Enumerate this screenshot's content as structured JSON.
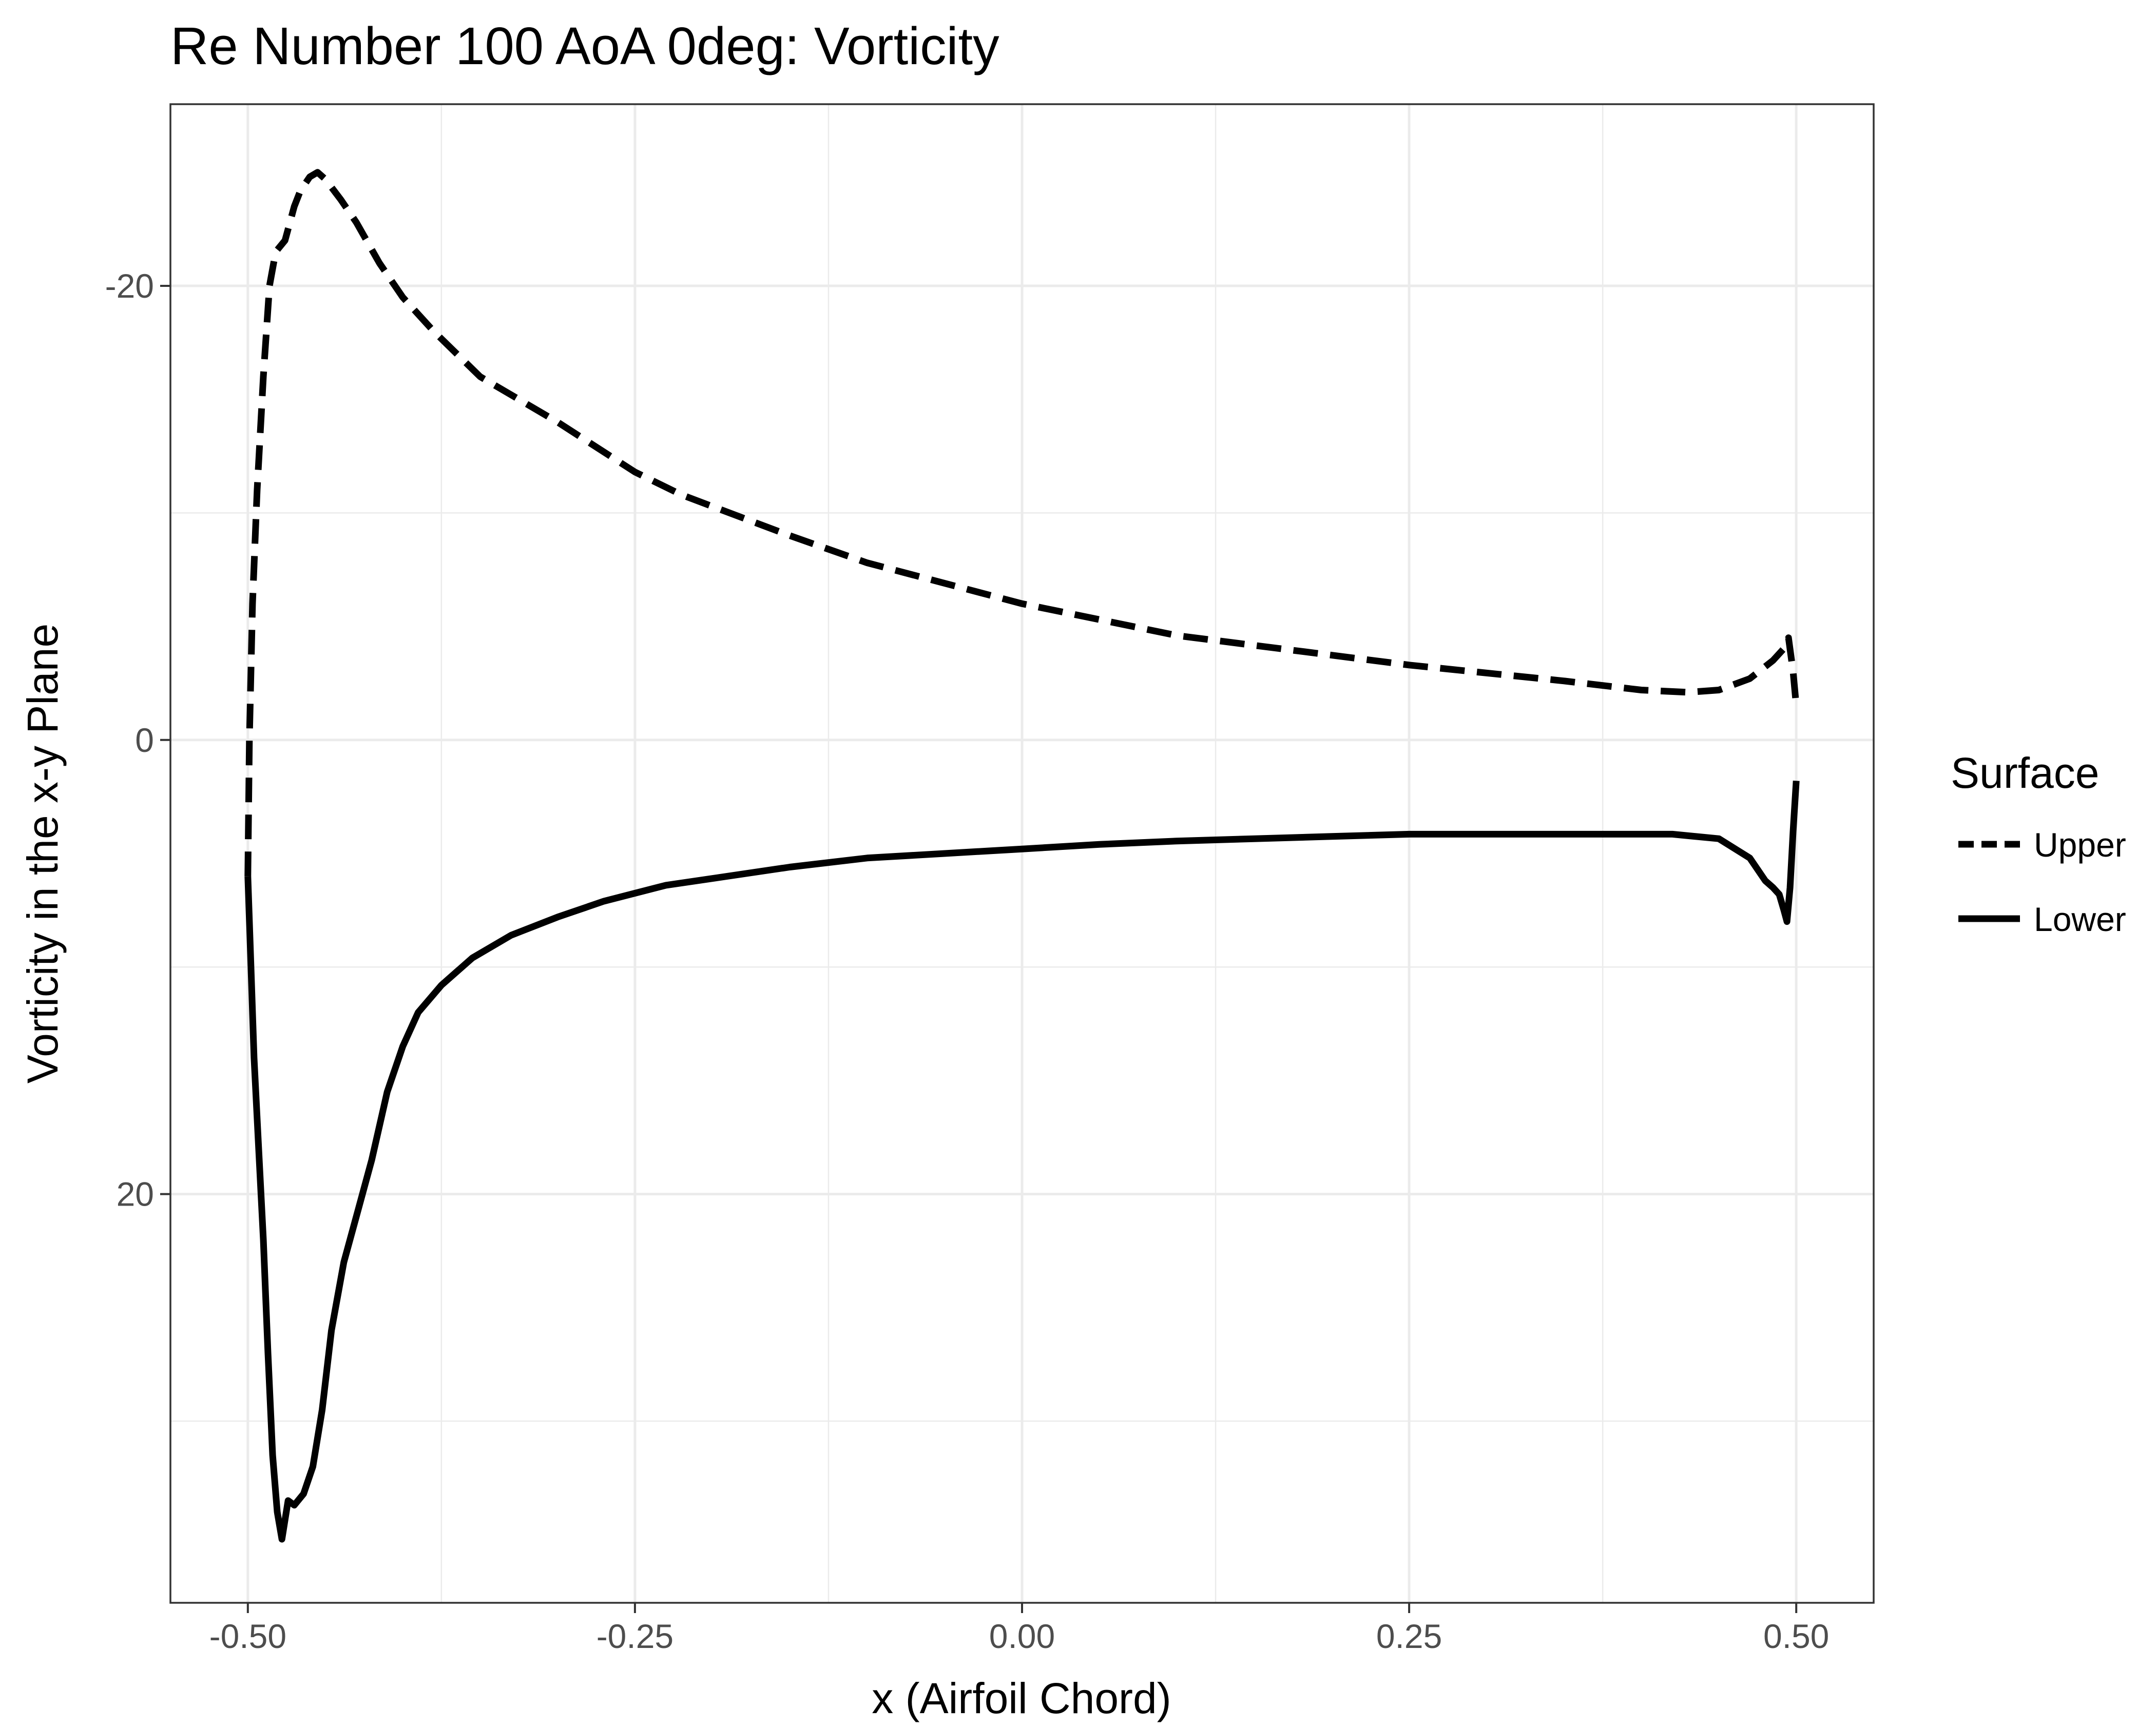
{
  "chart_data": {
    "type": "line",
    "title": "Re Number 100 AoA 0deg: Vorticity",
    "xlabel": "x (Airfoil Chord)",
    "ylabel": "Vorticity in the x-y Plane",
    "xlim": [
      -0.55,
      0.55
    ],
    "ylim": [
      -28,
      38
    ],
    "y_reversed": true,
    "grid": true,
    "x_ticks": [
      -0.5,
      -0.25,
      0.0,
      0.25,
      0.5
    ],
    "x_tick_labels": [
      "-0.50",
      "-0.25",
      "0.00",
      "0.25",
      "0.50"
    ],
    "y_ticks": [
      -20,
      0,
      20
    ],
    "y_tick_labels": [
      "-20",
      "0",
      "20"
    ],
    "legend": {
      "title": "Surface",
      "position": "right"
    },
    "series": [
      {
        "name": "Upper",
        "linetype": "dashed",
        "color": "#000000",
        "x": [
          -0.5,
          -0.499,
          -0.497,
          -0.494,
          -0.49,
          -0.486,
          -0.482,
          -0.476,
          -0.47,
          -0.466,
          -0.46,
          -0.455,
          -0.45,
          -0.44,
          -0.43,
          -0.415,
          -0.4,
          -0.38,
          -0.35,
          -0.3,
          -0.25,
          -0.22,
          -0.15,
          -0.1,
          0.0,
          0.1,
          0.25,
          0.35,
          0.4,
          0.43,
          0.45,
          0.47,
          0.485,
          0.493,
          0.495,
          0.498,
          0.5
        ],
        "y": [
          6,
          0,
          -6,
          -11,
          -16,
          -20,
          -21.5,
          -22,
          -23.5,
          -24.2,
          -24.8,
          -25,
          -24.7,
          -23.8,
          -22.8,
          -21,
          -19.5,
          -18,
          -16,
          -14,
          -11.8,
          -10.8,
          -9,
          -7.8,
          -6,
          -4.6,
          -3.3,
          -2.6,
          -2.2,
          -2.1,
          -2.2,
          -2.7,
          -3.5,
          -4.1,
          -4.5,
          -3,
          -1.5
        ]
      },
      {
        "name": "Lower",
        "linetype": "solid",
        "color": "#000000",
        "x": [
          -0.5,
          -0.498,
          -0.496,
          -0.493,
          -0.49,
          -0.487,
          -0.484,
          -0.481,
          -0.478,
          -0.474,
          -0.47,
          -0.464,
          -0.458,
          -0.452,
          -0.446,
          -0.438,
          -0.43,
          -0.42,
          -0.41,
          -0.4,
          -0.39,
          -0.375,
          -0.355,
          -0.33,
          -0.3,
          -0.27,
          -0.23,
          -0.2,
          -0.15,
          -0.1,
          -0.05,
          0.0,
          0.05,
          0.1,
          0.15,
          0.2,
          0.25,
          0.3,
          0.35,
          0.38,
          0.42,
          0.45,
          0.47,
          0.48,
          0.485,
          0.489,
          0.492,
          0.494,
          0.496,
          0.498,
          0.5
        ],
        "y": [
          6,
          10,
          14,
          18,
          22,
          27,
          31.5,
          34,
          35.2,
          33.5,
          33.7,
          33.2,
          32,
          29.5,
          26,
          23,
          21,
          18.5,
          15.5,
          13.5,
          12,
          10.8,
          9.6,
          8.6,
          7.8,
          7.1,
          6.4,
          6.1,
          5.6,
          5.2,
          5.0,
          4.8,
          4.6,
          4.45,
          4.35,
          4.25,
          4.15,
          4.15,
          4.15,
          4.15,
          4.15,
          4.35,
          5.2,
          6.2,
          6.5,
          6.8,
          7.5,
          8.0,
          6.5,
          4.0,
          1.8
        ]
      }
    ]
  }
}
